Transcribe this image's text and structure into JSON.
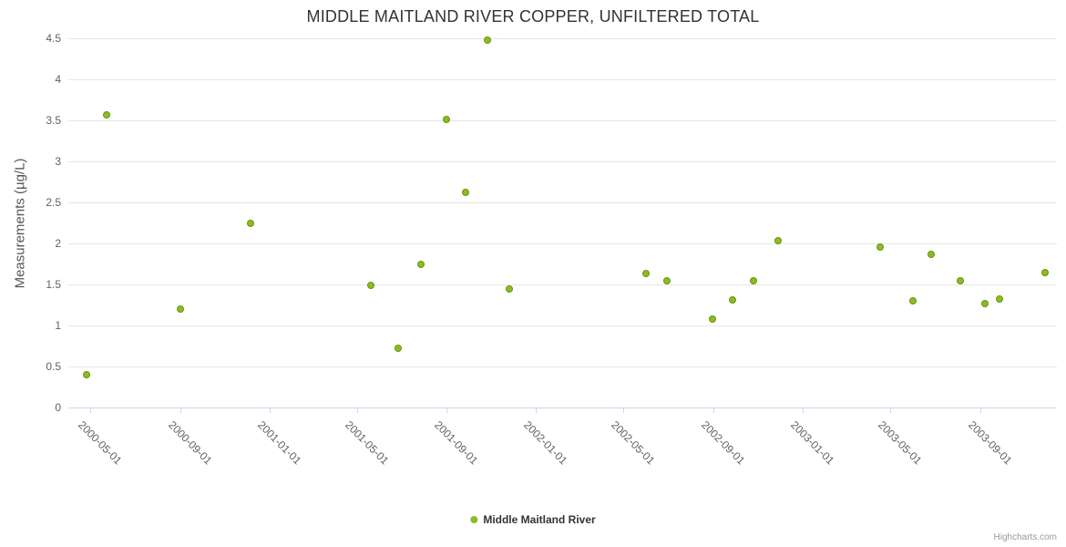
{
  "title": "MIDDLE MAITLAND RIVER COPPER, UNFILTERED TOTAL",
  "credits": "Highcharts.com",
  "legend": {
    "items": [
      {
        "label": "Middle Maitland River",
        "color": "#8bbc21"
      }
    ]
  },
  "chart_data": {
    "type": "scatter",
    "title": "MIDDLE MAITLAND RIVER COPPER, UNFILTERED TOTAL",
    "xlabel": "",
    "ylabel": "Measurements (µg/L)",
    "ylim": [
      0,
      4.5
    ],
    "yticks": [
      0,
      0.5,
      1,
      1.5,
      2,
      2.5,
      3,
      3.5,
      4,
      4.5
    ],
    "xlim": [
      "2000-04-01",
      "2003-12-15"
    ],
    "xticks": [
      "2000-05-01",
      "2000-09-01",
      "2001-01-01",
      "2001-05-01",
      "2001-09-01",
      "2002-01-01",
      "2002-05-01",
      "2002-09-01",
      "2003-01-01",
      "2003-05-01",
      "2003-09-01"
    ],
    "grid": "horizontal",
    "legend_position": "bottom-center",
    "marker_color": "#8bbc21",
    "series": [
      {
        "name": "Middle Maitland River",
        "color": "#8bbc21",
        "points": [
          {
            "x": "2000-04-26",
            "y": 0.4
          },
          {
            "x": "2000-05-23",
            "y": 3.57
          },
          {
            "x": "2000-09-01",
            "y": 1.2
          },
          {
            "x": "2000-12-06",
            "y": 2.25
          },
          {
            "x": "2001-05-20",
            "y": 1.49
          },
          {
            "x": "2001-06-27",
            "y": 0.72
          },
          {
            "x": "2001-07-27",
            "y": 1.74
          },
          {
            "x": "2001-08-31",
            "y": 3.51
          },
          {
            "x": "2001-09-27",
            "y": 2.62
          },
          {
            "x": "2001-10-26",
            "y": 4.48
          },
          {
            "x": "2001-11-26",
            "y": 1.44
          },
          {
            "x": "2002-06-01",
            "y": 1.63
          },
          {
            "x": "2002-06-29",
            "y": 1.55
          },
          {
            "x": "2002-08-31",
            "y": 1.08
          },
          {
            "x": "2002-09-27",
            "y": 1.31
          },
          {
            "x": "2002-10-26",
            "y": 1.54
          },
          {
            "x": "2002-11-29",
            "y": 2.03
          },
          {
            "x": "2003-04-17",
            "y": 1.96
          },
          {
            "x": "2003-06-01",
            "y": 1.3
          },
          {
            "x": "2003-06-26",
            "y": 1.87
          },
          {
            "x": "2003-08-05",
            "y": 1.54
          },
          {
            "x": "2003-09-08",
            "y": 1.27
          },
          {
            "x": "2003-09-28",
            "y": 1.32
          },
          {
            "x": "2003-11-29",
            "y": 1.65
          }
        ]
      }
    ]
  }
}
